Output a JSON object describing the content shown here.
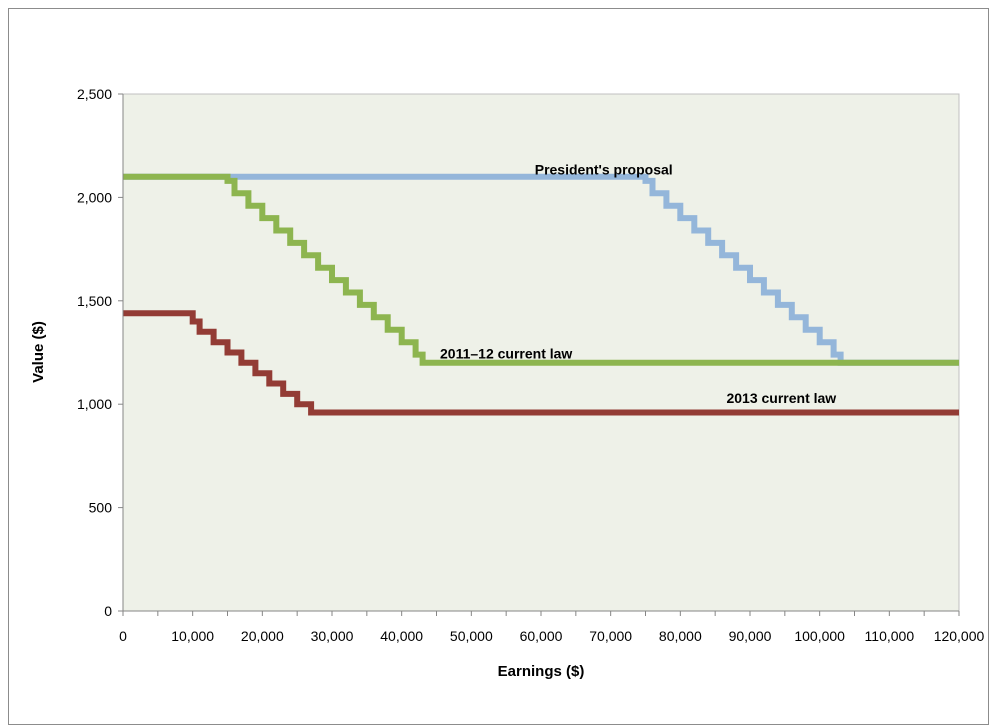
{
  "chart_data": {
    "type": "line",
    "title": "",
    "xlabel": "Earnings ($)",
    "ylabel": "Value ($)",
    "xlim": [
      0,
      120000
    ],
    "ylim": [
      0,
      2500
    ],
    "x_ticks": [
      0,
      5000,
      10000,
      15000,
      20000,
      25000,
      30000,
      35000,
      40000,
      45000,
      50000,
      55000,
      60000,
      65000,
      70000,
      75000,
      80000,
      85000,
      90000,
      95000,
      100000,
      105000,
      110000,
      115000,
      120000
    ],
    "x_tick_labels": [
      "0",
      "10,000",
      "20,000",
      "30,000",
      "40,000",
      "50,000",
      "60,000",
      "70,000",
      "80,000",
      "90,000",
      "100,000",
      "110,000",
      "120,000"
    ],
    "x_tick_label_values": [
      0,
      10000,
      20000,
      30000,
      40000,
      50000,
      60000,
      70000,
      80000,
      90000,
      100000,
      110000,
      120000
    ],
    "y_ticks": [
      0,
      500,
      1000,
      1500,
      2000,
      2500
    ],
    "y_tick_labels": [
      "0",
      "500",
      "1,000",
      "1,500",
      "2,000",
      "2,500"
    ],
    "grid": false,
    "plot_background": "#eef1e8",
    "series": [
      {
        "name": "President's proposal",
        "color": "#94b6da",
        "label_at": [
          69000,
          2110
        ],
        "x": [
          0,
          75000,
          75000,
          76000,
          76000,
          78000,
          78000,
          80000,
          80000,
          82000,
          82000,
          84000,
          84000,
          86000,
          86000,
          88000,
          88000,
          90000,
          90000,
          92000,
          92000,
          94000,
          94000,
          96000,
          96000,
          98000,
          98000,
          100000,
          100000,
          102000,
          102000,
          103000,
          103000,
          120000
        ],
        "y": [
          2100,
          2100,
          2080,
          2080,
          2020,
          2020,
          1960,
          1960,
          1900,
          1900,
          1840,
          1840,
          1780,
          1780,
          1720,
          1720,
          1660,
          1660,
          1600,
          1600,
          1540,
          1540,
          1480,
          1480,
          1420,
          1420,
          1360,
          1360,
          1300,
          1300,
          1240,
          1240,
          1200,
          1200
        ]
      },
      {
        "name": "2011–12 current law",
        "color": "#8db54f",
        "label_at": [
          55000,
          1220
        ],
        "x": [
          0,
          15000,
          15000,
          16000,
          16000,
          18000,
          18000,
          20000,
          20000,
          22000,
          22000,
          24000,
          24000,
          26000,
          26000,
          28000,
          28000,
          30000,
          30000,
          32000,
          32000,
          34000,
          34000,
          36000,
          36000,
          38000,
          38000,
          40000,
          40000,
          42000,
          42000,
          43000,
          43000,
          120000
        ],
        "y": [
          2100,
          2100,
          2080,
          2080,
          2020,
          2020,
          1960,
          1960,
          1900,
          1900,
          1840,
          1840,
          1780,
          1780,
          1720,
          1720,
          1660,
          1660,
          1600,
          1600,
          1540,
          1540,
          1480,
          1480,
          1420,
          1420,
          1360,
          1360,
          1300,
          1300,
          1240,
          1240,
          1200,
          1200
        ]
      },
      {
        "name": "2013 current law",
        "color": "#933c35",
        "label_at": [
          94500,
          1005
        ],
        "x": [
          0,
          10000,
          10000,
          11000,
          11000,
          13000,
          13000,
          15000,
          15000,
          17000,
          17000,
          19000,
          19000,
          21000,
          21000,
          23000,
          23000,
          25000,
          25000,
          27000,
          27000,
          120000
        ],
        "y": [
          1440,
          1440,
          1400,
          1400,
          1350,
          1350,
          1300,
          1300,
          1250,
          1250,
          1200,
          1200,
          1150,
          1150,
          1100,
          1100,
          1050,
          1050,
          1000,
          1000,
          960,
          960
        ]
      }
    ]
  }
}
